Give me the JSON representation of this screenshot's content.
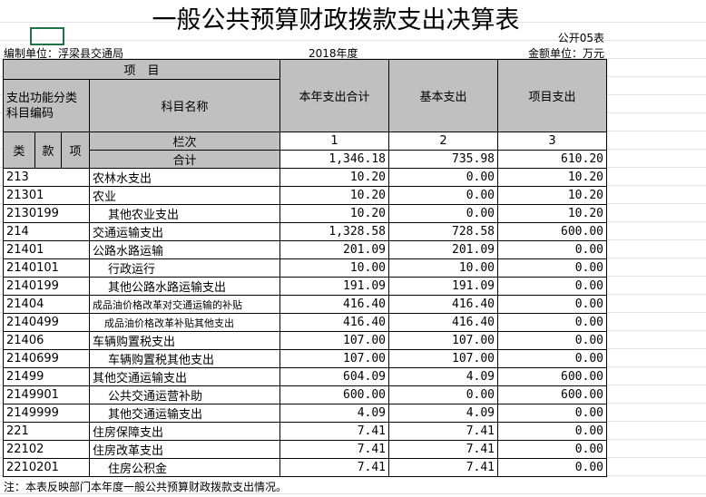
{
  "title": "一般公共预算财政拨款支出决算表",
  "form_no": "公开05表",
  "unit": "编制单位：浮梁县交通局",
  "year": "2018年度",
  "amount_unit": "金额单位：万元",
  "header": {
    "item": "项　目",
    "code_col": "支出功能分类科目编码",
    "name_col": "科目名称",
    "total": "本年支出合计",
    "basic": "基本支出",
    "project": "项目支出",
    "lei": "类",
    "kuan": "款",
    "xiang": "项",
    "col_label": "栏次",
    "col_nums": [
      "1",
      "2",
      "3"
    ],
    "sum_label": "合计"
  },
  "totals": [
    "1,346.18",
    "735.98",
    "610.20"
  ],
  "rows": [
    [
      "213",
      "农林水支出",
      "10.20",
      "0.00",
      "10.20"
    ],
    [
      "21301",
      "农业",
      "10.20",
      "0.00",
      "10.20"
    ],
    [
      "2130199",
      "其他农业支出",
      "10.20",
      "0.00",
      "10.20"
    ],
    [
      "214",
      "交通运输支出",
      "1,328.58",
      "728.58",
      "600.00"
    ],
    [
      "21401",
      "公路水路运输",
      "201.09",
      "201.09",
      "0.00"
    ],
    [
      "2140101",
      "行政运行",
      "10.00",
      "10.00",
      "0.00"
    ],
    [
      "2140199",
      "其他公路水路运输支出",
      "191.09",
      "191.09",
      "0.00"
    ],
    [
      "21404",
      "成品油价格改革对交通运输的补贴",
      "416.40",
      "416.40",
      "0.00"
    ],
    [
      "2140499",
      "成品油价格改革补贴其他支出",
      "416.40",
      "416.40",
      "0.00"
    ],
    [
      "21406",
      "车辆购置税支出",
      "107.00",
      "107.00",
      "0.00"
    ],
    [
      "2140699",
      "车辆购置税其他支出",
      "107.00",
      "107.00",
      "0.00"
    ],
    [
      "21499",
      "其他交通运输支出",
      "604.09",
      "4.09",
      "600.00"
    ],
    [
      "2149901",
      "公共交通运营补助",
      "600.00",
      "0.00",
      "600.00"
    ],
    [
      "2149999",
      "其他交通运输支出",
      "4.09",
      "4.09",
      "0.00"
    ],
    [
      "221",
      "住房保障支出",
      "7.41",
      "7.41",
      "0.00"
    ],
    [
      "22102",
      "住房改革支出",
      "7.41",
      "7.41",
      "0.00"
    ],
    [
      "2210201",
      "住房公积金",
      "7.41",
      "7.41",
      "0.00"
    ]
  ],
  "note": "注：本表反映部门本年度一般公共预算财政拨款支出情况。"
}
